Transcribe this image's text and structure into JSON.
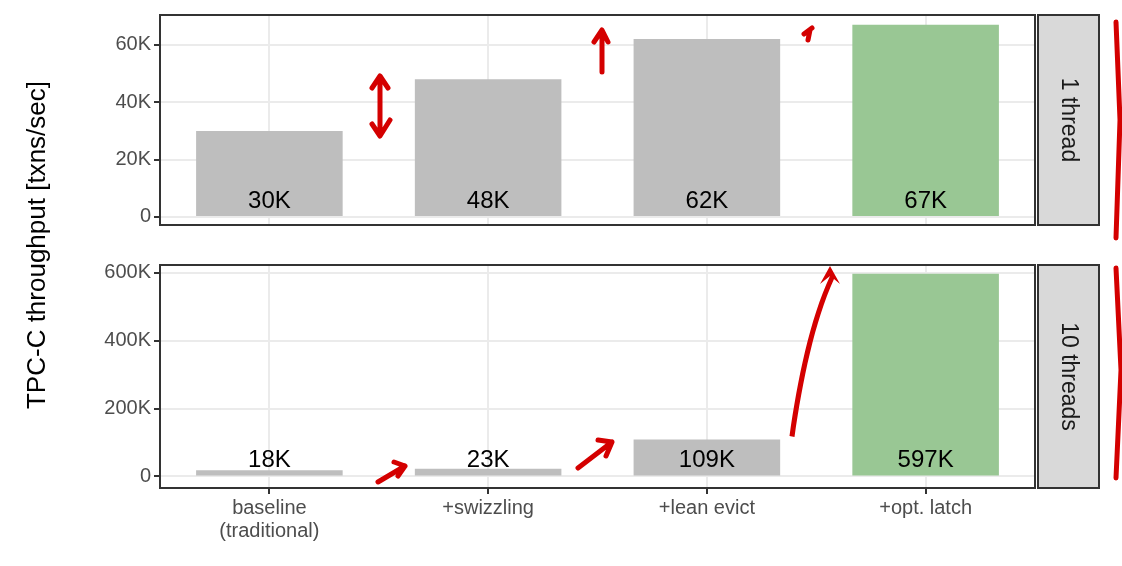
{
  "chart_data": [
    {
      "type": "bar",
      "annotations": [
        "1 thread"
      ],
      "ylabel": "TPC-C throughput [txns/sec]",
      "categories": [
        null,
        null,
        null,
        null
      ],
      "values": [
        30000,
        48000,
        62000,
        67000
      ],
      "colors": [
        "#bebebe",
        "#bebebe",
        "#bebebe",
        "#99c794"
      ],
      "value_labels": [
        "30K",
        "48K",
        "62K",
        "67K"
      ],
      "ylim": [
        -2800,
        70400
      ],
      "yticks": [
        {
          "value": 0,
          "label": "0"
        },
        {
          "value": 20000,
          "label": "20K"
        },
        {
          "value": 40000,
          "label": "40K"
        },
        {
          "value": 60000,
          "label": "60K"
        }
      ],
      "grid": true,
      "tick_labels": "y"
    },
    {
      "type": "bar",
      "annotations": [
        "10 threads"
      ],
      "categories": [
        "baseline\n(traditional)",
        "+swizzling",
        "+lean evict",
        "+opt. latch"
      ],
      "values": [
        18000,
        23000,
        109000,
        597000
      ],
      "colors": [
        "#bebebe",
        "#bebebe",
        "#bebebe",
        "#99c794"
      ],
      "value_labels": [
        "18K",
        "23K",
        "109K",
        "597K"
      ],
      "ylim": [
        -34000,
        623000
      ],
      "yticks": [
        {
          "value": 0,
          "label": "0"
        },
        {
          "value": 200000,
          "label": "200K"
        },
        {
          "value": 400000,
          "label": "400K"
        },
        {
          "value": 600000,
          "label": "600K"
        }
      ],
      "grid": true
    }
  ]
}
